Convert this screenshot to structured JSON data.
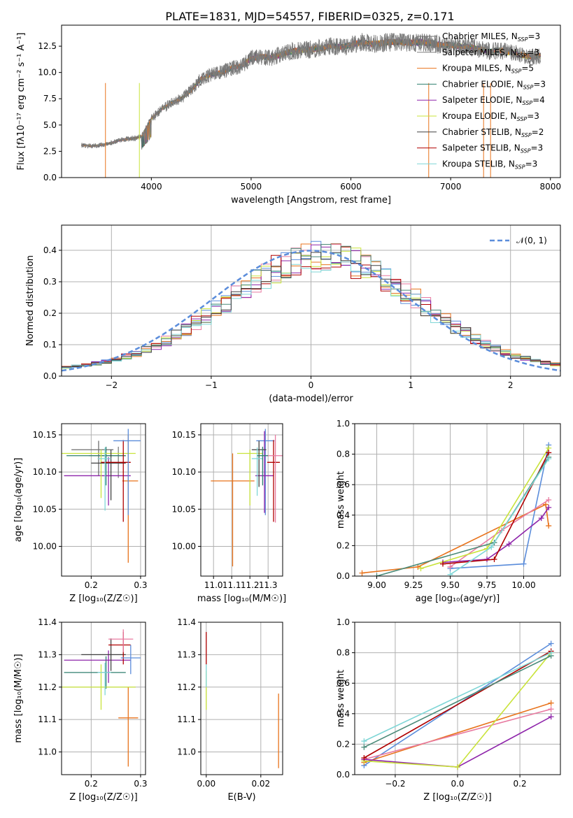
{
  "figure_title": "PLATE=1831, MJD=54557, FIBERID=0325, z=0.171",
  "colors": {
    "Chabrier MILES": "#6d6d6d",
    "Salpeter MILES": "#7f7f7f",
    "Kroupa MILES": "#e8731c",
    "Chabrier ELODIE": "#2f7f6f",
    "Salpeter ELODIE": "#8e24aa",
    "Kroupa ELODIE": "#c9e33a",
    "Chabrier STELIB": "#404040",
    "Salpeter STELIB": "#b00000",
    "Kroupa STELIB": "#7fd6d6",
    "mw_blue": "#5b8ddb",
    "mw_orange": "#e8731c",
    "mw_pink": "#e87aa0",
    "mw_purple": "#8e24aa",
    "mw_lime": "#c9e33a",
    "mw_red": "#b00000",
    "mw_teal": "#4a8a78",
    "mw_cyan": "#7fd6d6",
    "normal_curve": "#5b8ddb",
    "grid": "#b0b0b0"
  },
  "legend_spectrum": [
    {
      "label": "Chabrier MILES, N",
      "sub": "SSP",
      "n": "=3",
      "color_key": "Chabrier MILES"
    },
    {
      "label": "Salpeter MILES, N",
      "sub": "SSP",
      "n": "=3",
      "color_key": "Salpeter MILES"
    },
    {
      "label": "Kroupa MILES, N",
      "sub": "SSP",
      "n": "=5",
      "color_key": "Kroupa MILES"
    },
    {
      "label": "Chabrier ELODIE, N",
      "sub": "SSP",
      "n": "=3",
      "color_key": "Chabrier ELODIE"
    },
    {
      "label": "Salpeter ELODIE, N",
      "sub": "SSP",
      "n": "=4",
      "color_key": "Salpeter ELODIE"
    },
    {
      "label": "Kroupa ELODIE, N",
      "sub": "SSP",
      "n": "=3",
      "color_key": "Kroupa ELODIE"
    },
    {
      "label": "Chabrier STELIB, N",
      "sub": "SSP",
      "n": "=2",
      "color_key": "Chabrier STELIB"
    },
    {
      "label": "Salpeter STELIB, N",
      "sub": "SSP",
      "n": "=3",
      "color_key": "Salpeter STELIB"
    },
    {
      "label": "Kroupa STELIB, N",
      "sub": "SSP",
      "n": "=3",
      "color_key": "Kroupa STELIB"
    }
  ],
  "chart_data": [
    {
      "id": "spectrum",
      "type": "line",
      "title": "PLATE=1831, MJD=54557, FIBERID=0325, z=0.171",
      "xlabel": "wavelength [Angstrom, rest frame]",
      "ylabel": "Flux [fλ10⁻¹⁷ erg cm⁻² s⁻¹ A⁻¹]",
      "xlim": [
        3100,
        8100
      ],
      "ylim": [
        0,
        14.5
      ],
      "xticks": [
        4000,
        5000,
        6000,
        7000,
        8000
      ],
      "yticks": [
        0.0,
        2.5,
        5.0,
        7.5,
        10.0,
        12.5
      ],
      "ytick_labels": [
        "0.0",
        "2.5",
        "5.0",
        "7.5",
        "10.0",
        "12.5"
      ],
      "grid": false,
      "legend_position": "right",
      "continuum_x": [
        3300,
        3400,
        3500,
        3600,
        3700,
        3800,
        3900,
        4000,
        4100,
        4200,
        4300,
        4400,
        4500,
        4600,
        4700,
        4800,
        4900,
        5000,
        5100,
        5200,
        5300,
        5400,
        5500,
        5600,
        5700,
        5800,
        5900,
        6000,
        6100,
        6200,
        6300,
        6400,
        6500,
        6600,
        6700,
        6800,
        6900,
        7000,
        7100,
        7200,
        7300,
        7400,
        7500,
        7600,
        7700,
        7800,
        7900
      ],
      "continuum_y": [
        3.1,
        3.0,
        3.1,
        3.3,
        3.6,
        3.7,
        3.9,
        5.6,
        6.5,
        7.1,
        7.5,
        8.3,
        9.4,
        9.8,
        10.0,
        10.4,
        10.6,
        11.3,
        11.5,
        11.4,
        11.7,
        12.0,
        12.1,
        12.2,
        12.3,
        12.5,
        12.4,
        12.6,
        12.9,
        12.7,
        12.8,
        12.9,
        12.9,
        12.8,
        12.9,
        12.8,
        12.6,
        12.6,
        12.5,
        12.4,
        12.2,
        12.0,
        12.1,
        11.9,
        11.7,
        11.5,
        11.6
      ],
      "models": [
        "Chabrier MILES",
        "Salpeter MILES",
        "Kroupa MILES",
        "Chabrier ELODIE",
        "Salpeter ELODIE",
        "Kroupa ELODIE",
        "Chabrier STELIB",
        "Salpeter STELIB",
        "Kroupa STELIB"
      ]
    },
    {
      "id": "residual-histogram",
      "type": "step",
      "xlabel": "(data-model)/error",
      "ylabel": "Normed distribution",
      "xlim": [
        -2.5,
        2.5
      ],
      "ylim": [
        0,
        0.48
      ],
      "xticks": [
        -2,
        -1,
        0,
        1,
        2
      ],
      "xtick_labels": [
        "−2",
        "−1",
        "0",
        "1",
        "2"
      ],
      "yticks": [
        0.0,
        0.1,
        0.2,
        0.3,
        0.4
      ],
      "ytick_labels": [
        "0.0",
        "0.1",
        "0.2",
        "0.3",
        "0.4"
      ],
      "grid": true,
      "legend_position": "top-right",
      "legend": [
        {
          "label": "𝒩(0, 1)",
          "style": "dashed"
        }
      ],
      "bin_start": -2.5,
      "bin_width": 0.1
    },
    {
      "id": "age-vs-Z",
      "type": "errorbar",
      "xlabel": "Z [log₁₀(Z/Z☉)]",
      "ylabel": "age  [log₁₀(age/yr)]",
      "xlim": [
        0.14,
        0.31
      ],
      "ylim": [
        9.96,
        10.165
      ],
      "xticks": [
        0.2,
        0.3
      ],
      "xtick_labels": [
        "0.2",
        "0.3"
      ],
      "yticks": [
        10.0,
        10.05,
        10.1,
        10.15
      ],
      "ytick_labels": [
        "10.00",
        "10.05",
        "10.10",
        "10.15"
      ],
      "grid": true,
      "points": [
        {
          "model": "Chabrier MILES",
          "x": 0.215,
          "y": 10.13,
          "xerr": [
            0.055,
            0.03
          ],
          "yerr": [
            0.035,
            0.012
          ]
        },
        {
          "model": "Salpeter MILES",
          "x": 0.255,
          "y": 10.122,
          "xerr": [
            0.06,
            0.015
          ],
          "yerr": [
            0.03,
            0.012
          ]
        },
        {
          "model": "Kroupa MILES",
          "x": 0.275,
          "y": 10.088,
          "xerr": [
            0.012,
            0.02
          ],
          "yerr": [
            0.11,
            0.062
          ]
        },
        {
          "model": "Chabrier ELODIE",
          "x": 0.23,
          "y": 10.122,
          "xerr": [
            0.08,
            0.04
          ],
          "yerr": [
            0.04,
            0.012
          ]
        },
        {
          "model": "Salpeter ELODIE",
          "x": 0.235,
          "y": 10.095,
          "xerr": [
            0.09,
            0.045
          ],
          "yerr": [
            0.04,
            0.025
          ]
        },
        {
          "model": "Kroupa ELODIE",
          "x": 0.22,
          "y": 10.125,
          "xerr": [
            0.08,
            0.07
          ],
          "yerr": [
            0.06,
            0.005
          ]
        },
        {
          "model": "Chabrier STELIB",
          "x": 0.24,
          "y": 10.112,
          "xerr": [
            0.04,
            0.03
          ],
          "yerr": [
            0.05,
            0.018
          ]
        },
        {
          "model": "Salpeter STELIB",
          "x": 0.265,
          "y": 10.113,
          "xerr": [
            0.045,
            0.015
          ],
          "yerr": [
            0.08,
            0.03
          ]
        },
        {
          "model": "Kroupa STELIB",
          "x": 0.228,
          "y": 10.118,
          "xerr": [
            0.015,
            0.012
          ],
          "yerr": [
            0.07,
            0.015
          ]
        },
        {
          "model": "mw_blue",
          "x": 0.275,
          "y": 10.142,
          "xerr": [
            0.03,
            0.025
          ],
          "yerr": [
            0.1,
            0.016
          ]
        }
      ]
    },
    {
      "id": "age-vs-mass",
      "type": "errorbar",
      "xlabel": "mass [log₁₀(M/M☉)]",
      "ylabel": "",
      "xlim": [
        10.93,
        11.38
      ],
      "ylim": [
        9.96,
        10.165
      ],
      "xticks": [
        11.0,
        11.1,
        11.2,
        11.3
      ],
      "xtick_labels": [
        "11.0",
        "11.1",
        "11.2",
        "11.3"
      ],
      "yticks": [
        10.0,
        10.05,
        10.1,
        10.15
      ],
      "ytick_labels": [
        "10.00",
        "10.05",
        "10.10",
        "10.15"
      ],
      "grid": true,
      "points": [
        {
          "model": "Kroupa MILES",
          "x": 11.105,
          "y": 10.088,
          "xerr": [
            0.12,
            0.12
          ],
          "yerr": [
            0.115,
            0.037
          ]
        },
        {
          "model": "mw_blue",
          "x": 11.285,
          "y": 10.142,
          "xerr": [
            0.05,
            0.05
          ],
          "yerr": [
            0.1,
            0.016
          ]
        },
        {
          "model": "Salpeter ELODIE",
          "x": 11.28,
          "y": 10.095,
          "xerr": [
            0.05,
            0.05
          ],
          "yerr": [
            0.05,
            0.06
          ]
        },
        {
          "model": "Kroupa ELODIE",
          "x": 11.2,
          "y": 10.125,
          "xerr": [
            0.07,
            0.07
          ],
          "yerr": [
            0.07,
            0.005
          ]
        },
        {
          "model": "Chabrier STELIB",
          "x": 11.25,
          "y": 10.13,
          "xerr": [
            0.04,
            0.04
          ],
          "yerr": [
            0.05,
            0.012
          ]
        },
        {
          "model": "Salpeter STELIB",
          "x": 11.33,
          "y": 10.113,
          "xerr": [
            0.035,
            0.035
          ],
          "yerr": [
            0.08,
            0.03
          ]
        },
        {
          "model": "mw_pink",
          "x": 11.34,
          "y": 10.122,
          "xerr": [
            0.05,
            0.05
          ],
          "yerr": [
            0.09,
            0.028
          ]
        },
        {
          "model": "Kroupa STELIB",
          "x": 11.24,
          "y": 10.118,
          "xerr": [
            0.03,
            0.03
          ],
          "yerr": [
            0.05,
            0.015
          ]
        },
        {
          "model": "Chabrier ELODIE",
          "x": 11.27,
          "y": 10.122,
          "xerr": [
            0.03,
            0.03
          ],
          "yerr": [
            0.04,
            0.012
          ]
        }
      ]
    },
    {
      "id": "massweight-vs-age",
      "type": "line",
      "xlabel": "age  [log₁₀(age/yr)]",
      "ylabel": "mass weight",
      "xlim": [
        8.85,
        10.25
      ],
      "ylim": [
        0,
        1.0
      ],
      "xticks": [
        9.0,
        9.25,
        9.5,
        9.75,
        10.0
      ],
      "xtick_labels": [
        "9.00",
        "9.25",
        "9.50",
        "9.75",
        "10.00"
      ],
      "yticks": [
        0.0,
        0.2,
        0.4,
        0.6,
        0.8,
        1.0
      ],
      "ytick_labels": [
        "0.0",
        "0.2",
        "0.4",
        "0.6",
        "0.8",
        "1.0"
      ],
      "grid": true,
      "series": [
        {
          "color": "mw_blue",
          "x": [
            9.5,
            10.0,
            10.17
          ],
          "y": [
            0.05,
            0.08,
            0.86
          ]
        },
        {
          "color": "mw_orange",
          "x": [
            8.9,
            9.28,
            10.15,
            10.17
          ],
          "y": [
            0.02,
            0.06,
            0.47,
            0.33
          ]
        },
        {
          "color": "mw_pink",
          "x": [
            9.5,
            9.85,
            10.17
          ],
          "y": [
            0.06,
            0.3,
            0.5
          ]
        },
        {
          "color": "mw_purple",
          "x": [
            9.45,
            9.75,
            9.9,
            10.12,
            10.17
          ],
          "y": [
            0.09,
            0.11,
            0.21,
            0.38,
            0.45
          ]
        },
        {
          "color": "mw_lime",
          "x": [
            9.3,
            9.75,
            10.17
          ],
          "y": [
            0.05,
            0.18,
            0.84
          ]
        },
        {
          "color": "mw_red",
          "x": [
            9.45,
            9.8,
            10.17
          ],
          "y": [
            0.08,
            0.11,
            0.81
          ]
        },
        {
          "color": "mw_teal",
          "x": [
            9.0,
            9.8,
            10.17
          ],
          "y": [
            0.0,
            0.22,
            0.78
          ]
        },
        {
          "color": "mw_cyan",
          "x": [
            9.5,
            9.78,
            10.17
          ],
          "y": [
            0.01,
            0.19,
            0.77
          ]
        }
      ]
    },
    {
      "id": "mass-vs-Z",
      "type": "errorbar",
      "xlabel": "Z [log₁₀(Z/Z☉)]",
      "ylabel": "mass [log₁₀(M/M☉)]",
      "xlim": [
        0.14,
        0.31
      ],
      "ylim": [
        10.93,
        11.4
      ],
      "xticks": [
        0.2,
        0.3
      ],
      "xtick_labels": [
        "0.2",
        "0.3"
      ],
      "yticks": [
        11.0,
        11.1,
        11.2,
        11.3,
        11.4
      ],
      "ytick_labels": [
        "11.0",
        "11.1",
        "11.2",
        "11.3",
        "11.4"
      ],
      "grid": true,
      "points": [
        {
          "model": "Kroupa MILES",
          "x": 0.275,
          "y": 11.105,
          "xerr": [
            0.02,
            0.02
          ],
          "yerr": [
            0.15,
            0.095
          ]
        },
        {
          "model": "Chabrier ELODIE",
          "x": 0.23,
          "y": 11.245,
          "xerr": [
            0.085,
            0.04
          ],
          "yerr": [
            0.05,
            0.05
          ]
        },
        {
          "model": "Salpeter ELODIE",
          "x": 0.235,
          "y": 11.283,
          "xerr": [
            0.09,
            0.045
          ],
          "yerr": [
            0.07,
            0.03
          ]
        },
        {
          "model": "Kroupa ELODIE",
          "x": 0.22,
          "y": 11.2,
          "xerr": [
            0.08,
            0.07
          ],
          "yerr": [
            0.07,
            0.07
          ]
        },
        {
          "model": "Chabrier STELIB",
          "x": 0.24,
          "y": 11.3,
          "xerr": [
            0.06,
            0.03
          ],
          "yerr": [
            0.05,
            0.05
          ]
        },
        {
          "model": "Salpeter STELIB",
          "x": 0.265,
          "y": 11.33,
          "xerr": [
            0.03,
            0.015
          ],
          "yerr": [
            0.06,
            0.04
          ]
        },
        {
          "model": "mw_pink",
          "x": 0.265,
          "y": 11.348,
          "xerr": [
            0.03,
            0.02
          ],
          "yerr": [
            0.04,
            0.03
          ]
        },
        {
          "model": "mw_blue",
          "x": 0.28,
          "y": 11.29,
          "xerr": [
            0.02,
            0.02
          ],
          "yerr": [
            0.05,
            0.04
          ]
        },
        {
          "model": "Kroupa STELIB",
          "x": 0.228,
          "y": 11.245,
          "xerr": [
            0.015,
            0.012
          ],
          "yerr": [
            0.07,
            0.03
          ]
        }
      ]
    },
    {
      "id": "mass-vs-EBV",
      "type": "errorbar",
      "xlabel": "E(B-V)",
      "ylabel": "",
      "xlim": [
        -0.002,
        0.028
      ],
      "ylim": [
        10.93,
        11.4
      ],
      "xticks": [
        0.0,
        0.02
      ],
      "xtick_labels": [
        "0.00",
        "0.02"
      ],
      "yticks": [
        11.0,
        11.1,
        11.2,
        11.3,
        11.4
      ],
      "ytick_labels": [
        "11.0",
        "11.1",
        "11.2",
        "11.3",
        "11.4"
      ],
      "grid": true,
      "points": [
        {
          "model": "Salpeter STELIB",
          "x": 0.0,
          "y": 11.32,
          "xerr": [
            0,
            0
          ],
          "yerr": [
            0.05,
            0.05
          ]
        },
        {
          "model": "Kroupa ELODIE",
          "x": 0.0,
          "y": 11.2,
          "xerr": [
            0,
            0
          ],
          "yerr": [
            0.07,
            0.05
          ]
        },
        {
          "model": "Kroupa STELIB",
          "x": 0.0,
          "y": 11.24,
          "xerr": [
            0,
            0
          ],
          "yerr": [
            0.04,
            0.03
          ]
        },
        {
          "model": "Kroupa MILES",
          "x": 0.0265,
          "y": 11.07,
          "xerr": [
            0,
            0
          ],
          "yerr": [
            0.12,
            0.11
          ]
        }
      ]
    },
    {
      "id": "massweight-vs-Z",
      "type": "line",
      "xlabel": "Z [log₁₀(Z/Z☉)]",
      "ylabel": "mass weight",
      "xlim": [
        -0.33,
        0.33
      ],
      "ylim": [
        0,
        1.0
      ],
      "xticks": [
        -0.2,
        0.0,
        0.2
      ],
      "xtick_labels": [
        "−0.2",
        "0.0",
        "0.2"
      ],
      "yticks": [
        0.0,
        0.2,
        0.4,
        0.6,
        0.8,
        1.0
      ],
      "ytick_labels": [
        "0.0",
        "0.2",
        "0.4",
        "0.6",
        "0.8",
        "1.0"
      ],
      "grid": true,
      "series": [
        {
          "color": "mw_blue",
          "x": [
            -0.3,
            0.3
          ],
          "y": [
            0.06,
            0.86
          ]
        },
        {
          "color": "mw_orange",
          "x": [
            -0.3,
            0.3
          ],
          "y": [
            0.08,
            0.47
          ]
        },
        {
          "color": "mw_pink",
          "x": [
            -0.3,
            0.3
          ],
          "y": [
            0.1,
            0.43
          ]
        },
        {
          "color": "mw_purple",
          "x": [
            -0.3,
            0.0,
            0.3
          ],
          "y": [
            0.1,
            0.05,
            0.38
          ]
        },
        {
          "color": "mw_lime",
          "x": [
            -0.3,
            0.0,
            0.3
          ],
          "y": [
            0.09,
            0.05,
            0.8
          ]
        },
        {
          "color": "mw_red",
          "x": [
            -0.3,
            0.3
          ],
          "y": [
            0.11,
            0.81
          ]
        },
        {
          "color": "mw_teal",
          "x": [
            -0.3,
            0.3
          ],
          "y": [
            0.18,
            0.78
          ]
        },
        {
          "color": "mw_cyan",
          "x": [
            -0.3,
            0.3
          ],
          "y": [
            0.22,
            0.8
          ]
        }
      ]
    }
  ]
}
